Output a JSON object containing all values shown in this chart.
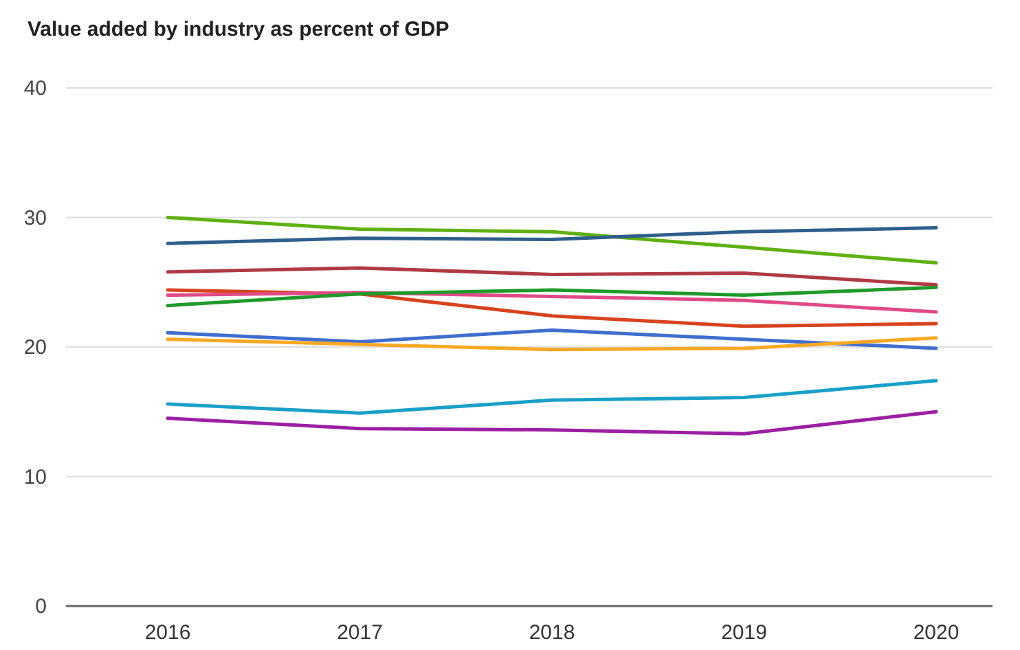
{
  "chart_data": {
    "type": "line",
    "title": "Value added by industry as percent of GDP",
    "categories": [
      "2016",
      "2017",
      "2018",
      "2019",
      "2020"
    ],
    "ylim": [
      0,
      40
    ],
    "yticks": [
      0,
      10,
      20,
      30,
      40
    ],
    "grid": "y",
    "marker": "none",
    "line_style": "solid",
    "series": [
      {
        "color": "#5fb012",
        "values": [
          30.0,
          29.1,
          28.9,
          27.7,
          26.5
        ]
      },
      {
        "color": "#2e5f8c",
        "values": [
          28.0,
          28.4,
          28.3,
          28.9,
          29.2
        ]
      },
      {
        "color": "#b03a44",
        "values": [
          25.8,
          26.1,
          25.6,
          25.7,
          24.8
        ]
      },
      {
        "color": "#d8431e",
        "values": [
          24.4,
          24.1,
          22.4,
          21.6,
          21.8
        ]
      },
      {
        "color": "#e04a86",
        "values": [
          24.0,
          24.2,
          23.9,
          23.6,
          22.7
        ]
      },
      {
        "color": "#1f9a2a",
        "values": [
          23.2,
          24.1,
          24.4,
          24.0,
          24.6
        ]
      },
      {
        "color": "#3f6ecf",
        "values": [
          21.1,
          20.4,
          21.3,
          20.6,
          19.9
        ]
      },
      {
        "color": "#f9a825",
        "values": [
          20.6,
          20.2,
          19.8,
          19.9,
          20.7
        ]
      },
      {
        "color": "#1aa0c8",
        "values": [
          15.6,
          14.9,
          15.9,
          16.1,
          17.4
        ]
      },
      {
        "color": "#9c1fa3",
        "values": [
          14.5,
          13.7,
          13.6,
          13.3,
          15.0
        ]
      }
    ]
  }
}
